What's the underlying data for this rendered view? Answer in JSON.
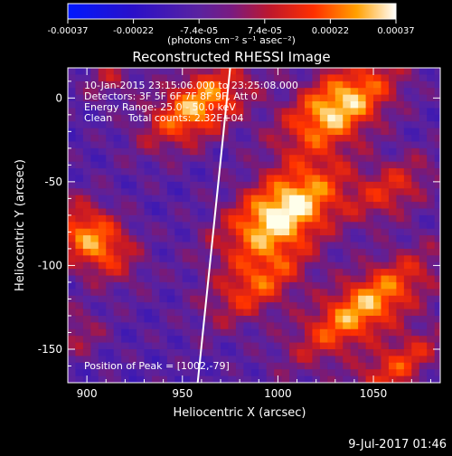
{
  "chart_data": {
    "type": "heatmap",
    "title": "Reconstructed RHESSI Image",
    "xlabel": "Heliocentric X (arcsec)",
    "ylabel": "Heliocentric Y (arcsec)",
    "xlim": [
      890,
      1085
    ],
    "ylim": [
      -170,
      18
    ],
    "x_ticks": [
      900,
      950,
      1000,
      1050
    ],
    "y_ticks": [
      0,
      -50,
      -100,
      -150
    ],
    "colorbar": {
      "ticks": [
        "-0.00037",
        "-0.00022",
        "-7.4e-05",
        "7.4e-05",
        "0.00022",
        "0.00037"
      ],
      "units_label": "(photons cm⁻² s⁻¹ asec⁻²)",
      "range": [
        -0.00037,
        0.00037
      ]
    },
    "annotations": [
      "10-Jan-2015 23:15:06.000 to 23:25:08.000",
      "Detectors: 3F 5F 6F 7F 8F 9F, Att 0",
      "Energy Range: 25.0 - 50.0 keV",
      "Clean     Total counts: 2.32E+04"
    ],
    "peak_label": "Position of Peak = [1002,-79]",
    "peak": {
      "x": 1002,
      "y": -79
    },
    "limb_line": [
      [
        975,
        18
      ],
      [
        958,
        -170
      ]
    ],
    "sources": [
      {
        "x": 1003,
        "y": -68,
        "sx": 26,
        "sy": 14,
        "rot": -40,
        "amp": 1.0
      },
      {
        "x": 958,
        "y": -5,
        "sx": 22,
        "sy": 12,
        "rot": -40,
        "amp": 0.8
      },
      {
        "x": 1032,
        "y": -5,
        "sx": 24,
        "sy": 13,
        "rot": -40,
        "amp": 0.9
      },
      {
        "x": 1060,
        "y": -55,
        "sx": 18,
        "sy": 10,
        "rot": -40,
        "amp": 0.45
      },
      {
        "x": 990,
        "y": -112,
        "sx": 22,
        "sy": 11,
        "rot": -40,
        "amp": 0.55
      },
      {
        "x": 1045,
        "y": -125,
        "sx": 30,
        "sy": 12,
        "rot": -40,
        "amp": 0.8
      },
      {
        "x": 1062,
        "y": -160,
        "sx": 20,
        "sy": 9,
        "rot": -40,
        "amp": 0.55
      },
      {
        "x": 903,
        "y": -85,
        "sx": 12,
        "sy": 18,
        "rot": -40,
        "amp": 0.75
      },
      {
        "x": 912,
        "y": 12,
        "sx": 10,
        "sy": 8,
        "rot": -40,
        "amp": 0.3
      },
      {
        "x": 895,
        "y": -140,
        "sx": 10,
        "sy": 10,
        "rot": -40,
        "amp": 0.3
      }
    ],
    "grid": false
  },
  "footer": {
    "date_stamp": "9-Jul-2017 01:46"
  }
}
